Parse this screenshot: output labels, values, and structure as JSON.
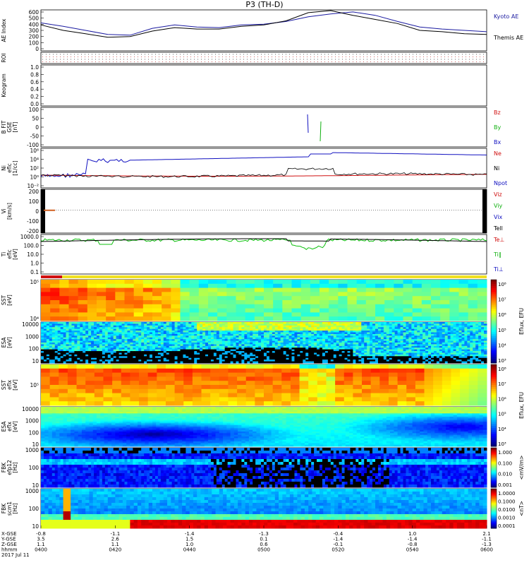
{
  "title": "P3 (TH-D)",
  "colors": {
    "kyoto": "#1a1aa0",
    "themis": "#000000",
    "red": "#d01010",
    "green": "#10b010",
    "blue": "#1010c0",
    "black": "#000000"
  },
  "chart_data": [
    {
      "id": "ae",
      "type": "line",
      "ylabel": "AE Index",
      "yticks": [
        "600",
        "500",
        "400",
        "300",
        "200",
        "100",
        "0"
      ],
      "ylim": [
        0,
        600
      ],
      "legend": [
        {
          "name": "Kyoto AE",
          "color": "#1a1aa0"
        },
        {
          "name": "Themis AE",
          "color": "#000000"
        }
      ],
      "series": [
        {
          "name": "Kyoto AE",
          "color": "#1a1aa0",
          "x": [
            0,
            0.05,
            0.1,
            0.15,
            0.2,
            0.25,
            0.3,
            0.35,
            0.4,
            0.45,
            0.5,
            0.55,
            0.6,
            0.65,
            0.7,
            0.75,
            0.8,
            0.85,
            0.9,
            0.95,
            1.0
          ],
          "y": [
            410,
            360,
            300,
            240,
            230,
            330,
            380,
            350,
            340,
            380,
            390,
            430,
            500,
            540,
            570,
            520,
            430,
            350,
            320,
            300,
            280
          ]
        },
        {
          "name": "Themis AE",
          "color": "#000000",
          "x": [
            0,
            0.05,
            0.1,
            0.15,
            0.2,
            0.25,
            0.3,
            0.35,
            0.4,
            0.45,
            0.5,
            0.55,
            0.6,
            0.65,
            0.7,
            0.75,
            0.8,
            0.85,
            0.9,
            0.95,
            1.0
          ],
          "y": [
            380,
            300,
            250,
            200,
            210,
            290,
            340,
            320,
            320,
            360,
            380,
            440,
            560,
            590,
            520,
            460,
            400,
            300,
            280,
            250,
            240
          ]
        }
      ]
    },
    {
      "id": "roi",
      "type": "table",
      "ylabel": "ROI"
    },
    {
      "id": "keogram",
      "type": "line",
      "ylabel": "Keogram",
      "yticks": [
        "1.0",
        "0.8",
        "0.6",
        "0.4",
        "0.2",
        "0.0"
      ],
      "ylim": [
        0,
        1
      ]
    },
    {
      "id": "bfit",
      "type": "line",
      "ylabel": "B FIT",
      "ylabel2": "GSE",
      "ylabel3": "[nT]",
      "yticks": [
        "100",
        "50",
        "0",
        "-50",
        "-100"
      ],
      "ylim": [
        -100,
        100
      ],
      "legend": [
        {
          "name": "Bz",
          "color": "#d01010"
        },
        {
          "name": "By",
          "color": "#10b010"
        },
        {
          "name": "Bx",
          "color": "#1010c0"
        }
      ]
    },
    {
      "id": "ni",
      "type": "line",
      "ylabel": "Ni",
      "ylabel2": "eflc",
      "ylabel3": "[1/cc]",
      "yticks": [
        "10⁶",
        "10⁴",
        "10²",
        "10⁰",
        "10⁻²"
      ],
      "legend": [
        {
          "name": "Ne",
          "color": "#d01010"
        },
        {
          "name": "Ni",
          "color": "#000000"
        },
        {
          "name": "Npot",
          "color": "#1010c0"
        }
      ]
    },
    {
      "id": "vi",
      "type": "line",
      "ylabel": "Vi",
      "ylabel2": "[km/s]",
      "yticks": [
        "200",
        "100",
        "0",
        "-100",
        "-200"
      ],
      "ylim": [
        -250,
        250
      ],
      "legend": [
        {
          "name": "Viz",
          "color": "#d01010"
        },
        {
          "name": "Viy",
          "color": "#10b010"
        },
        {
          "name": "Vix",
          "color": "#1010c0"
        },
        {
          "name": "Tell",
          "color": "#000000"
        }
      ]
    },
    {
      "id": "ti",
      "type": "line",
      "ylabel": "Ti",
      "ylabel2": "eflc",
      "ylabel3": "[eV]",
      "yticks": [
        "1000.0",
        "100.0",
        "10.0",
        "1.0",
        "0.1"
      ],
      "legend": [
        {
          "name": "Te⊥",
          "color": "#d01010"
        },
        {
          "name": "Ti‖",
          "color": "#10b010"
        },
        {
          "name": "Ti⊥",
          "color": "#1010c0"
        }
      ]
    },
    {
      "id": "sst_e",
      "type": "heatmap",
      "ylabel": "SST",
      "ylabel2": "[eV]",
      "yticks": [
        "10⁵",
        "10⁴"
      ]
    },
    {
      "id": "esa_e",
      "type": "heatmap",
      "ylabel": "ESA",
      "ylabel2": "[eV]",
      "yticks": [
        "10000",
        "1000",
        "100",
        "10"
      ]
    },
    {
      "id": "sst_i",
      "type": "heatmap",
      "ylabel": "SST",
      "ylabel2": "eflx",
      "ylabel3": "[eV]",
      "yticks": [
        "10⁵"
      ]
    },
    {
      "id": "esa_i",
      "type": "heatmap",
      "ylabel": "ESA",
      "ylabel2": "eflx",
      "ylabel3": "[eV]",
      "yticks": [
        "10000",
        "1000",
        "100",
        "10"
      ]
    },
    {
      "id": "fbk_e",
      "type": "heatmap",
      "ylabel": "FBK",
      "ylabel2": "efp12",
      "ylabel3": "[Hz]",
      "yticks": [
        "1000",
        "100",
        "10"
      ]
    },
    {
      "id": "fbk_b",
      "type": "heatmap",
      "ylabel": "FBK",
      "ylabel2": "scm1",
      "ylabel3": "[Hz]",
      "yticks": [
        "1000",
        "100",
        "10"
      ]
    }
  ],
  "colorbars": [
    {
      "id": "cb_e",
      "label": "Eflux, EFU",
      "ticks": [
        "10⁸",
        "10⁷",
        "10⁶",
        "10⁵",
        "10⁴",
        "10³"
      ]
    },
    {
      "id": "cb_i",
      "label": "Eflux, EFU",
      "ticks": [
        "10⁸",
        "10⁷",
        "10⁶",
        "10⁵",
        "10⁴",
        "10³"
      ]
    },
    {
      "id": "cb_fe",
      "label": "<mV/m>",
      "ticks": [
        "1.000",
        "0.100",
        "0.010",
        "0.001"
      ]
    },
    {
      "id": "cb_fb",
      "label": "<nT>",
      "ticks": [
        "1.0000",
        "0.1000",
        "0.0100",
        "0.0010",
        "0.0001"
      ]
    }
  ],
  "x_axis": {
    "row_labels": [
      "X-GSE",
      "Y-GSE",
      "Z-GSE",
      "hhmm",
      "2017 Jul 11"
    ],
    "ticks": [
      {
        "x": "-0.8",
        "y": "3.5",
        "z": "1.1",
        "t": "0400"
      },
      {
        "x": "-1.1",
        "y": "2.6",
        "z": "1.1",
        "t": "0420"
      },
      {
        "x": "-1.4",
        "y": "1.5",
        "z": "1.0",
        "t": "0440"
      },
      {
        "x": "-1.3",
        "y": "0.1",
        "z": "0.6",
        "t": "0500"
      },
      {
        "x": "-0.4",
        "y": "-1.4",
        "z": "-0.1",
        "t": "0520"
      },
      {
        "x": "1.0",
        "y": "-1.4",
        "z": "-0.8",
        "t": "0540"
      },
      {
        "x": "2.1",
        "y": "-1.1",
        "z": "-1.3",
        "t": "0600"
      }
    ]
  }
}
